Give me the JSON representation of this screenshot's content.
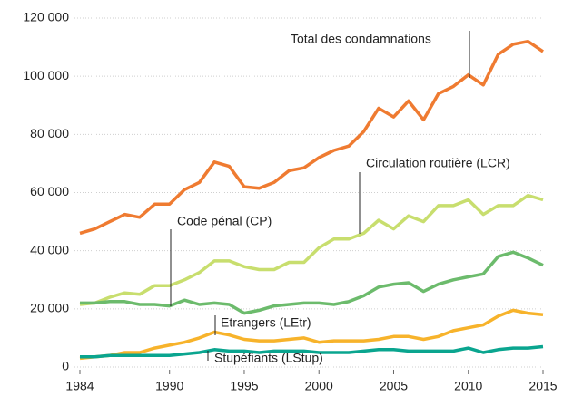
{
  "chart_data": {
    "type": "line",
    "x": [
      1984,
      1985,
      1986,
      1987,
      1988,
      1989,
      1990,
      1991,
      1992,
      1993,
      1994,
      1995,
      1996,
      1997,
      1998,
      1999,
      2000,
      2001,
      2002,
      2003,
      2004,
      2005,
      2006,
      2007,
      2008,
      2009,
      2010,
      2011,
      2012,
      2013,
      2014,
      2015
    ],
    "xlim": [
      1984,
      2015
    ],
    "xticks": [
      1984,
      1990,
      1995,
      2000,
      2005,
      2010,
      2015
    ],
    "ylim": [
      0,
      120000
    ],
    "yticks": [
      0,
      {
        "value": 20000,
        "label": "20 000"
      },
      {
        "value": 40000,
        "label": "40 000"
      },
      {
        "value": 60000,
        "label": "60 000"
      },
      {
        "value": 80000,
        "label": "80 000"
      },
      {
        "value": 100000,
        "label": "100 000"
      },
      {
        "value": 120000,
        "label": "120 000"
      }
    ],
    "grid": true,
    "series": [
      {
        "name": "Total des condamnations",
        "color": "#ef7b31",
        "values": [
          46000,
          47500,
          50000,
          52500,
          51500,
          56000,
          56000,
          61000,
          63500,
          70500,
          69000,
          62000,
          61500,
          63500,
          67500,
          68500,
          72000,
          74500,
          76000,
          81000,
          89000,
          86000,
          91500,
          85000,
          94000,
          96500,
          100500,
          97000,
          107500,
          111000,
          112000,
          108500
        ]
      },
      {
        "name": "Circulation routière (LCR)",
        "color": "#c8de6e",
        "values": [
          21500,
          22000,
          24000,
          25500,
          25000,
          28000,
          28000,
          30000,
          32500,
          36500,
          36500,
          34500,
          33500,
          33500,
          36000,
          36000,
          41000,
          44000,
          44000,
          46000,
          50500,
          47500,
          52000,
          50000,
          55500,
          55500,
          57500,
          52500,
          55500,
          55500,
          59000,
          57500
        ]
      },
      {
        "name": "Code pénal (CP)",
        "color": "#6cbb6c",
        "values": [
          22000,
          22000,
          22500,
          22500,
          21500,
          21500,
          21000,
          23000,
          21500,
          22000,
          21500,
          18500,
          19500,
          21000,
          21500,
          22000,
          22000,
          21500,
          22500,
          24500,
          27500,
          28500,
          29000,
          26000,
          28500,
          30000,
          31000,
          32000,
          38000,
          39500,
          37500,
          35000
        ]
      },
      {
        "name": "Etrangers (LEtr)",
        "color": "#f7b32b",
        "values": [
          3000,
          3500,
          4000,
          5000,
          5000,
          6500,
          7500,
          8500,
          10000,
          12000,
          11000,
          9500,
          9000,
          9000,
          9500,
          10000,
          8500,
          9000,
          9000,
          9000,
          9500,
          10500,
          10500,
          9500,
          10500,
          12500,
          13500,
          14500,
          17500,
          19500,
          18500,
          18000
        ]
      },
      {
        "name": "Stupéfiants (LStup)",
        "color": "#0aa58f",
        "values": [
          3500,
          3500,
          4000,
          4000,
          4000,
          4000,
          4000,
          4500,
          5000,
          6000,
          5500,
          5500,
          5000,
          5500,
          5500,
          5500,
          5000,
          5000,
          5000,
          5500,
          6000,
          6000,
          5500,
          5500,
          5500,
          5500,
          6500,
          5000,
          6000,
          6500,
          6500,
          7000
        ]
      }
    ]
  }
}
